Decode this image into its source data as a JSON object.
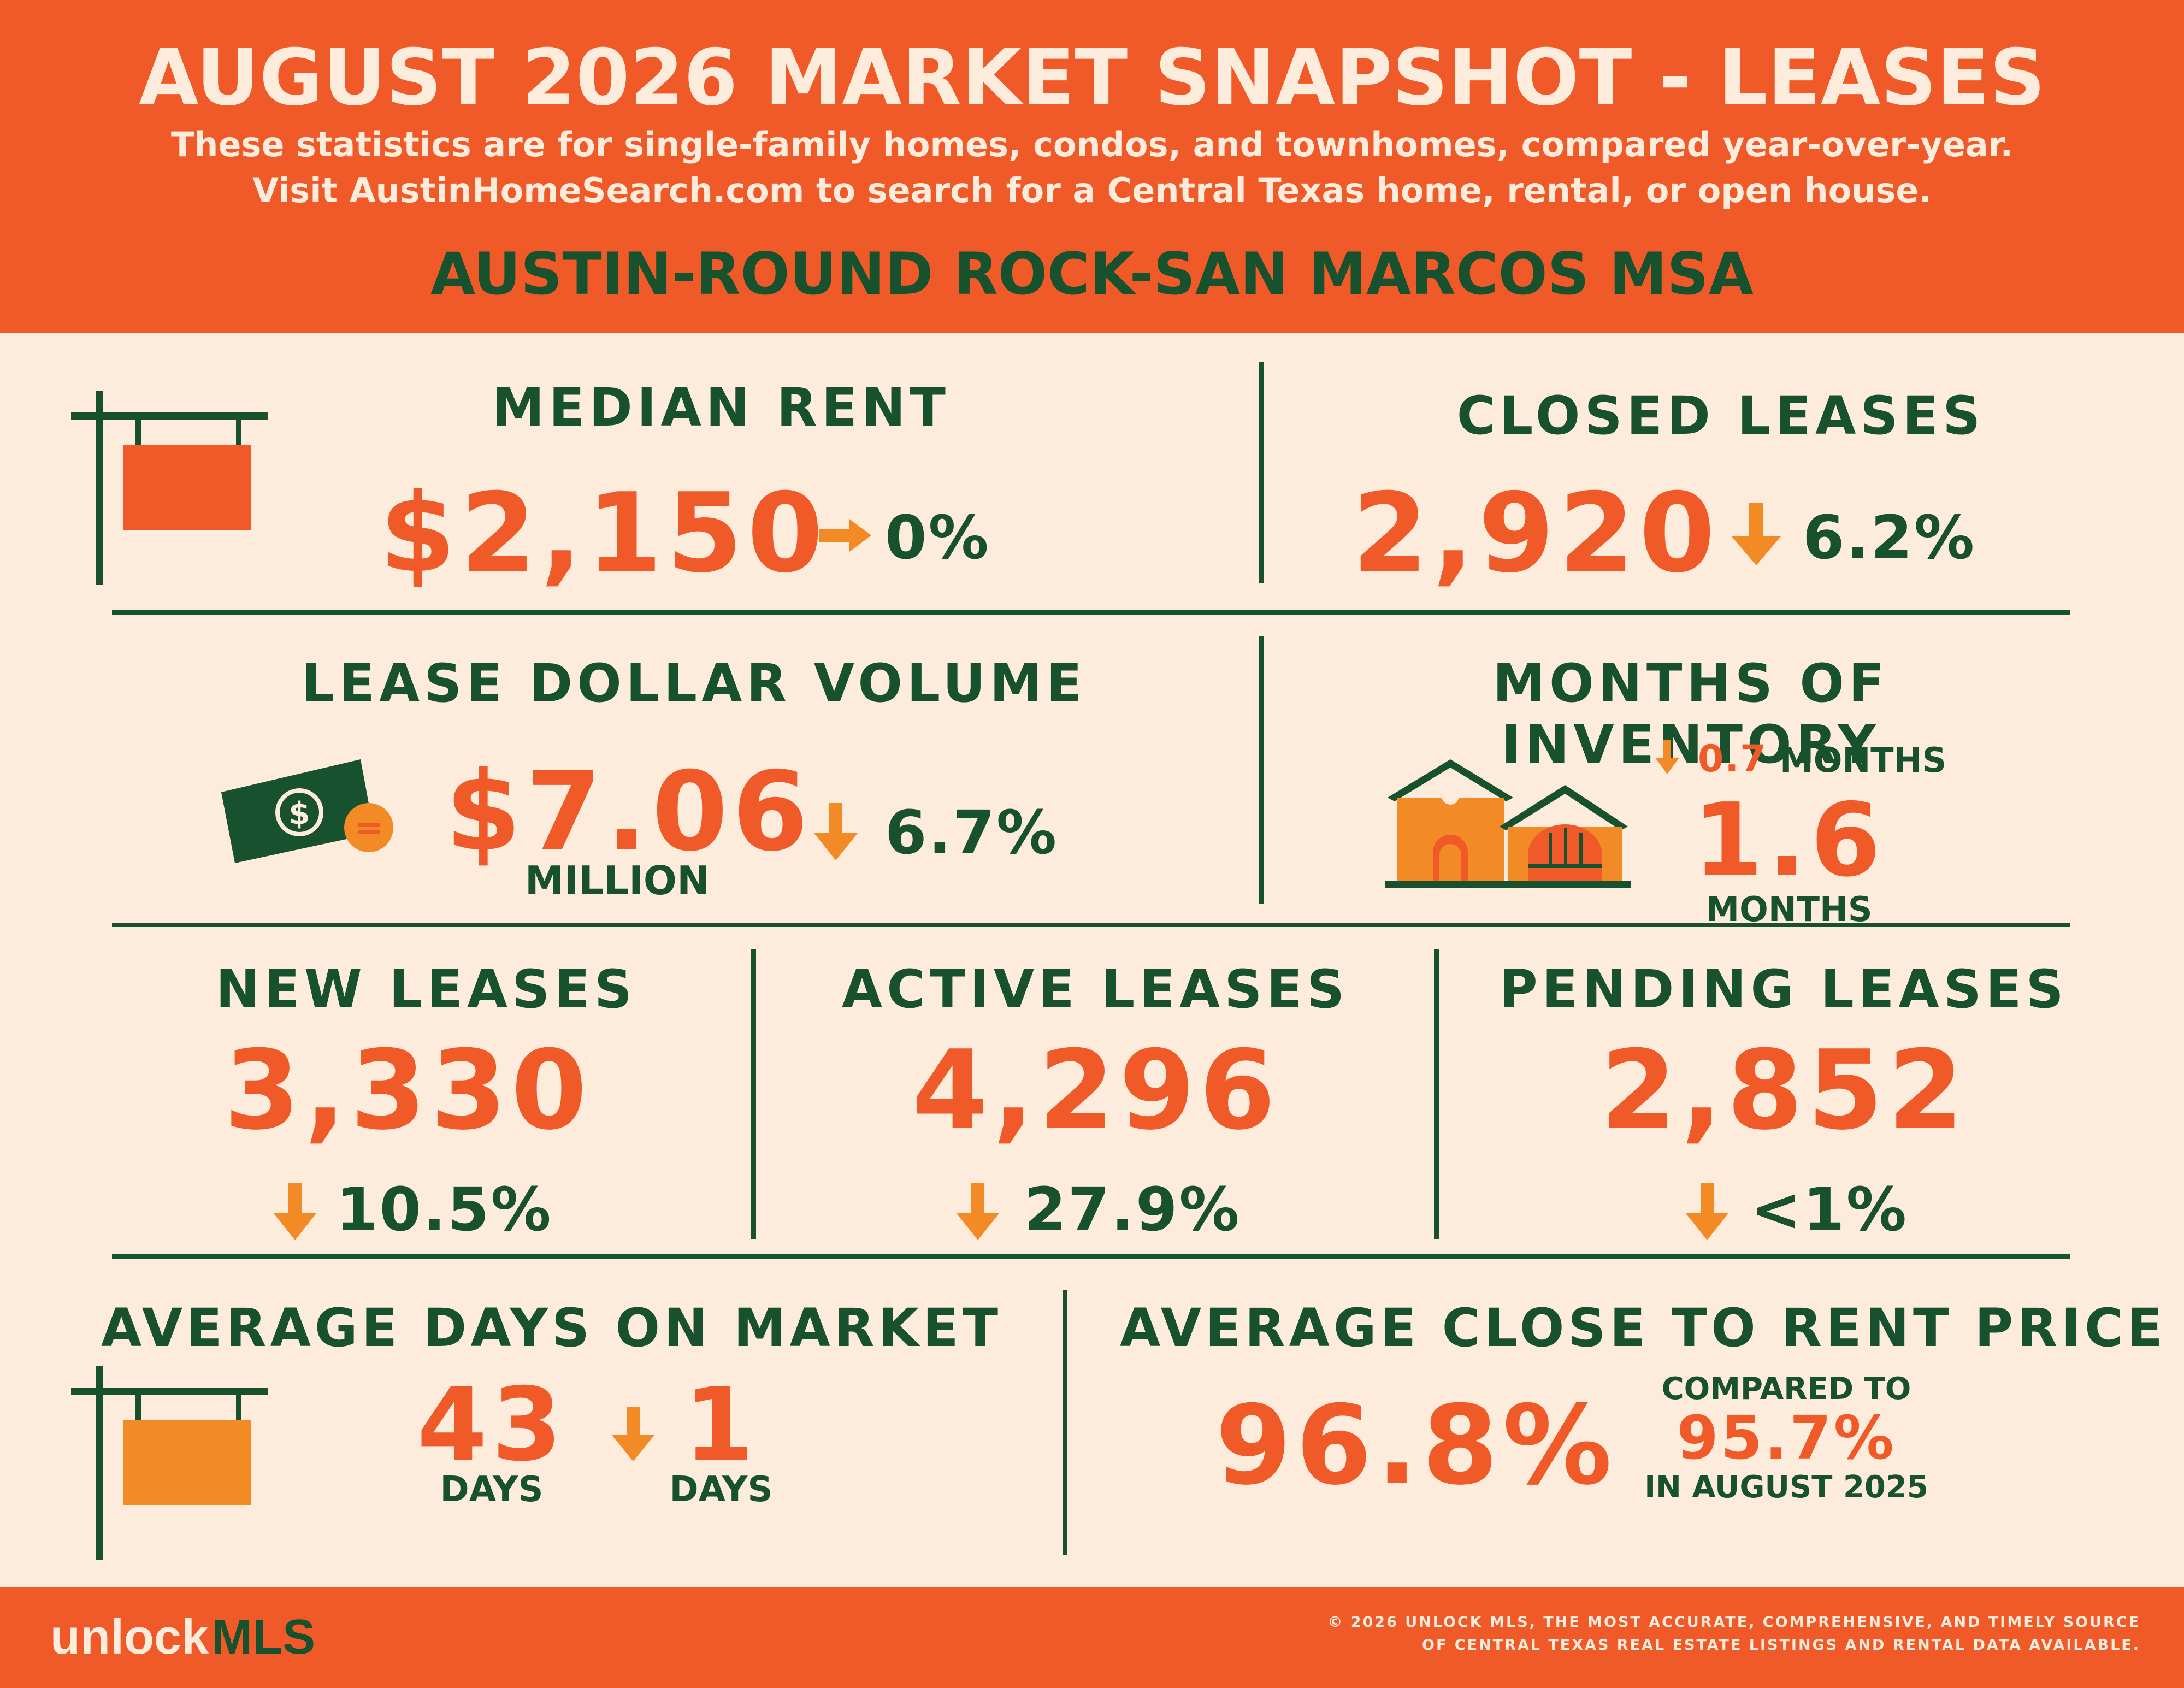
{
  "header": {
    "title": "AUGUST 2026 MARKET SNAPSHOT - LEASES",
    "subtitle_line1": "These statistics are for single-family homes, condos, and townhomes, compared year-over-year.",
    "subtitle_line2": "Visit AustinHomeSearch.com to search for a Central Texas home, rental, or open house.",
    "region": "AUSTIN-ROUND ROCK-SAN MARCOS MSA"
  },
  "median_rent": {
    "label": "MEDIAN RENT",
    "value": "$2,150",
    "change": "0%",
    "direction": "flat"
  },
  "closed_leases": {
    "label": "CLOSED LEASES",
    "value": "2,920",
    "change": "6.2%",
    "direction": "down"
  },
  "lease_dollar_volume": {
    "label": "LEASE DOLLAR VOLUME",
    "value": "$7.06",
    "unit": "MILLION",
    "change": "6.7%",
    "direction": "down"
  },
  "months_inventory": {
    "label": "MONTHS OF INVENTORY",
    "change_value": "0.7",
    "change_unit": "MONTHS",
    "value": "1.6",
    "unit": "MONTHS",
    "direction": "down"
  },
  "new_leases": {
    "label": "NEW LEASES",
    "value": "3,330",
    "change": "10.5%",
    "direction": "down"
  },
  "active_leases": {
    "label": "ACTIVE LEASES",
    "value": "4,296",
    "change": "27.9%",
    "direction": "down"
  },
  "pending_leases": {
    "label": "PENDING LEASES",
    "value": "2,852",
    "change": "<1%",
    "direction": "down"
  },
  "avg_days": {
    "label": "AVERAGE DAYS ON MARKET",
    "value": "43",
    "unit": "DAYS",
    "change": "1",
    "change_unit": "DAYS",
    "direction": "down"
  },
  "close_to_rent": {
    "label": "AVERAGE CLOSE TO RENT PRICE",
    "value": "96.8%",
    "compared_label": "COMPARED TO",
    "compared_value": "95.7%",
    "compared_period": "IN AUGUST 2025"
  },
  "footer": {
    "logo_part1": "unlock",
    "logo_part2": "MLS",
    "copyright_line1": "© 2026 UNLOCK MLS, THE MOST ACCURATE, COMPREHENSIVE, AND TIMELY SOURCE",
    "copyright_line2": "OF CENTRAL TEXAS REAL ESTATE LISTINGS AND RENTAL DATA AVAILABLE."
  },
  "icons": [
    "sign-icon",
    "money-icon",
    "house-icon",
    "arrow-right-icon",
    "arrow-down-icon"
  ],
  "colors": {
    "orange": "#ef5a28",
    "light_orange": "#f28a25",
    "green": "#17512d",
    "cream": "#fdebdc"
  }
}
